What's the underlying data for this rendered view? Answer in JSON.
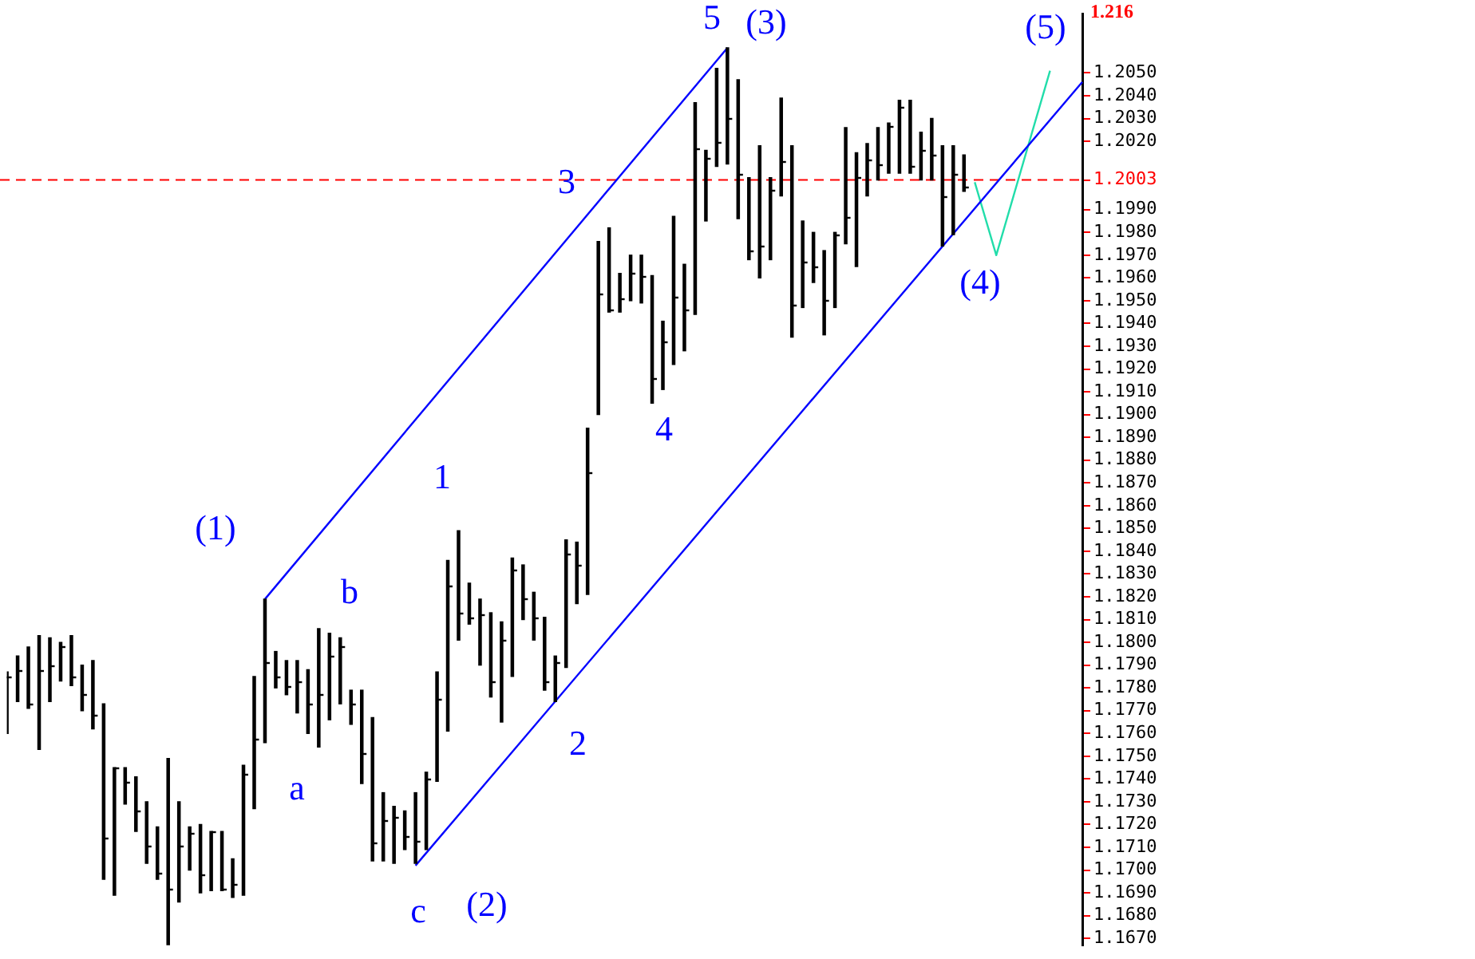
{
  "chart_data": {
    "type": "candlestick",
    "ylim": [
      1.1667,
      1.2076
    ],
    "categories": [
      null,
      null,
      null,
      null,
      null,
      null,
      null,
      null,
      null,
      null,
      null,
      null,
      null,
      null,
      null,
      null,
      null,
      null,
      null,
      null,
      null,
      null,
      null,
      null,
      null,
      null,
      null,
      null,
      null,
      null,
      null,
      null,
      null,
      null,
      null,
      null,
      null,
      null,
      null,
      null,
      null,
      null,
      null,
      null,
      null,
      null,
      null,
      null,
      null,
      null,
      null,
      null,
      null,
      null,
      null,
      null,
      null,
      null,
      null,
      null,
      null,
      null,
      null,
      null,
      null,
      null,
      null,
      null,
      null,
      null,
      null,
      null,
      null,
      null,
      null,
      null,
      null,
      null,
      null,
      null,
      null,
      null,
      null,
      null,
      null,
      null,
      null,
      null,
      null,
      null,
      null,
      null,
      null,
      null,
      null,
      null,
      null,
      null,
      null,
      null,
      null
    ],
    "yticks": [
      {
        "value": 1.167,
        "label": "1.1670"
      },
      {
        "value": 1.168,
        "label": "1.1680"
      },
      {
        "value": 1.169,
        "label": "1.1690"
      },
      {
        "value": 1.17,
        "label": "1.1700"
      },
      {
        "value": 1.171,
        "label": "1.1710"
      },
      {
        "value": 1.172,
        "label": "1.1720"
      },
      {
        "value": 1.173,
        "label": "1.1730"
      },
      {
        "value": 1.174,
        "label": "1.1740"
      },
      {
        "value": 1.175,
        "label": "1.1750"
      },
      {
        "value": 1.176,
        "label": "1.1760"
      },
      {
        "value": 1.177,
        "label": "1.1770"
      },
      {
        "value": 1.178,
        "label": "1.1780"
      },
      {
        "value": 1.179,
        "label": "1.1790"
      },
      {
        "value": 1.18,
        "label": "1.1800"
      },
      {
        "value": 1.181,
        "label": "1.1810"
      },
      {
        "value": 1.182,
        "label": "1.1820"
      },
      {
        "value": 1.183,
        "label": "1.1830"
      },
      {
        "value": 1.184,
        "label": "1.1840"
      },
      {
        "value": 1.185,
        "label": "1.1850"
      },
      {
        "value": 1.186,
        "label": "1.1860"
      },
      {
        "value": 1.187,
        "label": "1.1870"
      },
      {
        "value": 1.188,
        "label": "1.1880"
      },
      {
        "value": 1.189,
        "label": "1.1890"
      },
      {
        "value": 1.19,
        "label": "1.1900"
      },
      {
        "value": 1.191,
        "label": "1.1910"
      },
      {
        "value": 1.192,
        "label": "1.1920"
      },
      {
        "value": 1.193,
        "label": "1.1930"
      },
      {
        "value": 1.194,
        "label": "1.1940"
      },
      {
        "value": 1.195,
        "label": "1.1950"
      },
      {
        "value": 1.196,
        "label": "1.1960"
      },
      {
        "value": 1.197,
        "label": "1.1970"
      },
      {
        "value": 1.198,
        "label": "1.1980"
      },
      {
        "value": 1.199,
        "label": "1.1990"
      },
      {
        "value": 1.2003,
        "label": "1.2003"
      },
      {
        "value": 1.202,
        "label": "1.2020"
      },
      {
        "value": 1.203,
        "label": "1.2030"
      },
      {
        "value": 1.204,
        "label": "1.2040"
      },
      {
        "value": 1.205,
        "label": "1.2050"
      }
    ],
    "tick_labels": "y",
    "ref_lines": [
      {
        "axis": "y",
        "value": 1.2003,
        "color": "#ff0000",
        "line_style": "dashed"
      }
    ],
    "annotations": [
      "1.216",
      "5",
      "(3)",
      "(5)",
      "(4)",
      "3",
      "4",
      "1",
      "(1)",
      "b",
      "a",
      "2",
      "c",
      "(2)"
    ],
    "series": [
      {
        "color": "#000000",
        "ohlc": [
          [
            1.1785,
            1.1787,
            1.176,
            1.1785
          ],
          [
            1.1788,
            1.1794,
            1.1774,
            1.1788
          ],
          [
            1.1773,
            1.1798,
            1.1771,
            1.1773
          ],
          [
            1.1788,
            1.1803,
            1.1753,
            1.1788
          ],
          [
            1.179,
            1.1802,
            1.1774,
            1.179
          ],
          [
            1.1798,
            1.18,
            1.1783,
            1.1798
          ],
          [
            1.1785,
            1.1803,
            1.1781,
            1.1785
          ],
          [
            1.1777,
            1.179,
            1.177,
            1.1777
          ],
          [
            1.1768,
            1.1792,
            1.1762,
            1.1768
          ],
          [
            1.1714,
            1.1773,
            1.1696,
            1.1714
          ],
          [
            1.1745,
            1.1745,
            1.1689,
            1.1745
          ],
          [
            1.1739,
            1.1745,
            1.1729,
            1.1739
          ],
          [
            1.1726,
            1.1741,
            1.1717,
            1.1726
          ],
          [
            1.1711,
            1.173,
            1.1703,
            1.1711
          ],
          [
            1.1699,
            1.1719,
            1.1696,
            1.1699
          ],
          [
            1.1692,
            1.1749,
            1.1667,
            1.1692
          ],
          [
            1.1711,
            1.173,
            1.1686,
            1.1711
          ],
          [
            1.1716,
            1.1719,
            1.17,
            1.1716
          ],
          [
            1.1698,
            1.172,
            1.169,
            1.1698
          ],
          [
            1.1717,
            1.1717,
            1.1691,
            1.1717
          ],
          [
            1.1692,
            1.1717,
            1.1691,
            1.1692
          ],
          [
            1.1694,
            1.1705,
            1.1688,
            1.1694
          ],
          [
            1.1742,
            1.1746,
            1.1689,
            1.1742
          ],
          [
            1.1758,
            1.1785,
            1.1727,
            1.1758
          ],
          [
            1.1791,
            1.1819,
            1.1756,
            1.1791
          ],
          [
            1.1785,
            1.1796,
            1.178,
            1.1785
          ],
          [
            1.1781,
            1.1792,
            1.1777,
            1.1781
          ],
          [
            1.1783,
            1.1792,
            1.1769,
            1.1783
          ],
          [
            1.1773,
            1.1788,
            1.176,
            1.1773
          ],
          [
            1.1777,
            1.1806,
            1.1754,
            1.1777
          ],
          [
            1.1794,
            1.1804,
            1.1766,
            1.1794
          ],
          [
            1.1798,
            1.1802,
            1.1773,
            1.1798
          ],
          [
            1.1773,
            1.1779,
            1.1764,
            1.1773
          ],
          [
            1.1751,
            1.1779,
            1.1738,
            1.1751
          ],
          [
            1.1712,
            1.1767,
            1.1704,
            1.1712
          ],
          [
            1.1722,
            1.1734,
            1.1704,
            1.1722
          ],
          [
            1.1723,
            1.1728,
            1.1703,
            1.1723
          ],
          [
            1.1715,
            1.1726,
            1.1709,
            1.1715
          ],
          [
            1.1713,
            1.1734,
            1.1703,
            1.1713
          ],
          [
            1.174,
            1.1743,
            1.1709,
            1.174
          ],
          [
            1.1775,
            1.1787,
            1.1739,
            1.1775
          ],
          [
            1.1825,
            1.1836,
            1.1761,
            1.1825
          ],
          [
            1.1813,
            1.1849,
            1.1801,
            1.1813
          ],
          [
            1.1811,
            1.1826,
            1.1808,
            1.1811
          ],
          [
            1.1812,
            1.1819,
            1.179,
            1.1812
          ],
          [
            1.1783,
            1.1813,
            1.1776,
            1.1783
          ],
          [
            1.1801,
            1.1809,
            1.1765,
            1.1801
          ],
          [
            1.1832,
            1.1837,
            1.1785,
            1.1832
          ],
          [
            1.1819,
            1.1834,
            1.181,
            1.1819
          ],
          [
            1.1811,
            1.1822,
            1.1801,
            1.1811
          ],
          [
            1.1783,
            1.1811,
            1.1779,
            1.1783
          ],
          [
            1.1791,
            1.1794,
            1.1774,
            1.1791
          ],
          [
            1.1839,
            1.1845,
            1.1789,
            1.1839
          ],
          [
            1.1834,
            1.1844,
            1.1817,
            1.1834
          ],
          [
            1.1875,
            1.1894,
            1.1821,
            1.1875
          ],
          [
            1.1953,
            1.1976,
            1.19,
            1.1953
          ],
          [
            1.1946,
            1.1982,
            1.1945,
            1.1946
          ],
          [
            1.1951,
            1.1962,
            1.1945,
            1.1951
          ],
          [
            1.1962,
            1.197,
            1.195,
            1.1962
          ],
          [
            1.1961,
            1.197,
            1.1949,
            1.1961
          ],
          [
            1.1916,
            1.1961,
            1.1905,
            1.1916
          ],
          [
            1.1932,
            1.1941,
            1.1911,
            1.1932
          ],
          [
            1.1952,
            1.1987,
            1.1922,
            1.1952
          ],
          [
            1.1946,
            1.1966,
            1.1928,
            1.1946
          ],
          [
            1.2017,
            1.2037,
            1.1944,
            1.2017
          ],
          [
            1.2013,
            1.2016,
            1.1985,
            1.2013
          ],
          [
            1.202,
            1.2052,
            1.2009,
            1.202
          ],
          [
            1.203,
            1.2061,
            1.201,
            1.203
          ],
          [
            1.2006,
            1.2047,
            1.1986,
            1.2006
          ],
          [
            1.1972,
            1.2004,
            1.1968,
            1.1972
          ],
          [
            1.1974,
            1.2018,
            1.196,
            1.1974
          ],
          [
            1.1999,
            1.2004,
            1.1968,
            1.1999
          ],
          [
            1.2011,
            1.2039,
            1.1996,
            1.2011
          ],
          [
            1.1948,
            1.2018,
            1.1934,
            1.1948
          ],
          [
            1.1967,
            1.1985,
            1.1947,
            1.1967
          ],
          [
            1.1965,
            1.198,
            1.1958,
            1.1965
          ],
          [
            1.195,
            1.1972,
            1.1935,
            1.195
          ],
          [
            1.1979,
            1.198,
            1.1947,
            1.1979
          ],
          [
            1.1987,
            1.2026,
            1.1975,
            1.1987
          ],
          [
            1.2004,
            1.2015,
            1.1965,
            1.2004
          ],
          [
            1.2012,
            1.2019,
            1.1996,
            1.2012
          ],
          [
            1.201,
            1.2026,
            1.2003,
            1.201
          ],
          [
            1.2027,
            1.2028,
            1.2006,
            1.2027
          ],
          [
            1.2035,
            1.2038,
            1.2006,
            1.2035
          ],
          [
            1.2009,
            1.2038,
            1.2006,
            1.2009
          ],
          [
            1.2016,
            1.2024,
            1.2003,
            1.2016
          ],
          [
            1.2014,
            1.203,
            1.2003,
            1.2014
          ],
          [
            1.1996,
            1.2018,
            1.1974,
            1.1996
          ],
          [
            1.2006,
            1.2018,
            1.1979,
            1.2006
          ],
          [
            1.2,
            1.2014,
            1.1998,
            1.2
          ],
          null,
          null,
          null,
          null,
          null,
          null,
          null,
          null,
          null,
          null,
          null
        ]
      },
      {
        "type": "line",
        "color": "#0000ff",
        "values": [
          null,
          null,
          null,
          null,
          null,
          null,
          null,
          null,
          null,
          null,
          null,
          null,
          null,
          null,
          null,
          null,
          null,
          null,
          null,
          null,
          null,
          null,
          null,
          null,
          null,
          null,
          null,
          null,
          null,
          null,
          null,
          null,
          null,
          null,
          null,
          null,
          null,
          null,
          1.1702,
          null,
          null,
          null,
          null,
          null,
          null,
          null,
          null,
          null,
          null,
          null,
          null,
          null,
          null,
          null,
          null,
          null,
          null,
          null,
          null,
          null,
          null,
          null,
          null,
          null,
          null,
          null,
          null,
          null,
          null,
          null,
          null,
          null,
          null,
          null,
          null,
          null,
          null,
          null,
          null,
          null,
          null,
          null,
          null,
          null,
          null,
          null,
          null,
          null,
          null,
          null,
          null,
          null,
          null,
          null,
          null,
          null,
          null,
          null,
          null,
          null,
          1.2046
        ]
      },
      {
        "type": "line",
        "color": "#0000ff",
        "values": [
          null,
          null,
          null,
          null,
          null,
          null,
          null,
          null,
          null,
          null,
          null,
          null,
          null,
          null,
          null,
          null,
          null,
          null,
          null,
          null,
          null,
          null,
          null,
          null,
          1.1819,
          null,
          null,
          null,
          null,
          null,
          null,
          null,
          null,
          null,
          null,
          null,
          null,
          null,
          null,
          null,
          null,
          null,
          null,
          null,
          null,
          null,
          null,
          null,
          null,
          null,
          null,
          null,
          null,
          null,
          null,
          null,
          null,
          null,
          null,
          null,
          null,
          null,
          null,
          null,
          null,
          null,
          null,
          1.2061,
          null,
          null,
          null,
          null,
          null,
          null,
          null,
          null,
          null,
          null,
          null,
          null,
          null,
          null,
          null,
          null,
          null,
          null,
          null,
          null,
          null,
          null,
          null,
          null,
          null,
          null,
          null,
          null,
          null,
          null,
          null,
          null,
          null
        ]
      },
      {
        "type": "line",
        "color": "#22ddaa",
        "values": [
          null,
          null,
          null,
          null,
          null,
          null,
          null,
          null,
          null,
          null,
          null,
          null,
          null,
          null,
          null,
          null,
          null,
          null,
          null,
          null,
          null,
          null,
          null,
          null,
          null,
          null,
          null,
          null,
          null,
          null,
          null,
          null,
          null,
          null,
          null,
          null,
          null,
          null,
          null,
          null,
          null,
          null,
          null,
          null,
          null,
          null,
          null,
          null,
          null,
          null,
          null,
          null,
          null,
          null,
          null,
          null,
          null,
          null,
          null,
          null,
          null,
          null,
          null,
          null,
          null,
          null,
          null,
          null,
          null,
          null,
          null,
          null,
          null,
          null,
          null,
          null,
          null,
          null,
          null,
          null,
          null,
          null,
          null,
          null,
          null,
          null,
          null,
          null,
          null,
          null,
          1.2002,
          null,
          1.197,
          null,
          null,
          null,
          null,
          1.2051,
          null,
          null,
          null
        ]
      }
    ]
  }
}
